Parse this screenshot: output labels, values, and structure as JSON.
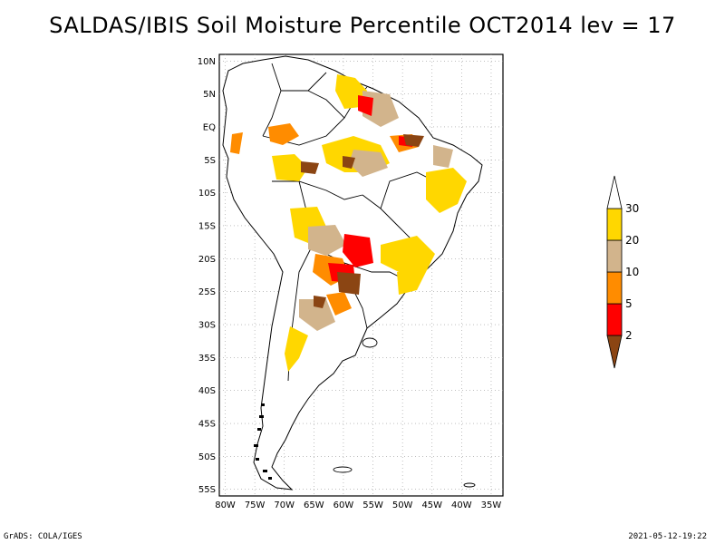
{
  "title": "SALDAS/IBIS Soil Moisture Percentile OCT2014 lev = 17",
  "map": {
    "lat_labels": [
      "10N",
      "5N",
      "EQ",
      "5S",
      "10S",
      "15S",
      "20S",
      "25S",
      "30S",
      "35S",
      "40S",
      "45S",
      "50S",
      "55S"
    ],
    "lon_labels": [
      "80W",
      "75W",
      "70W",
      "65W",
      "60W",
      "55W",
      "50W",
      "45W",
      "40W",
      "35W"
    ],
    "lon_range": [
      -81,
      -33
    ],
    "lat_range": [
      -56,
      11
    ]
  },
  "colorbar": {
    "labels": [
      "2",
      "5",
      "10",
      "20",
      "30"
    ],
    "colors": [
      "#8b4513",
      "#ff0000",
      "#ff8c00",
      "#d2b48c",
      "#ffd700",
      "#ffffff"
    ]
  },
  "footer": {
    "left": "GrADS: COLA/IGES",
    "right": "2021-05-12-19:22"
  }
}
